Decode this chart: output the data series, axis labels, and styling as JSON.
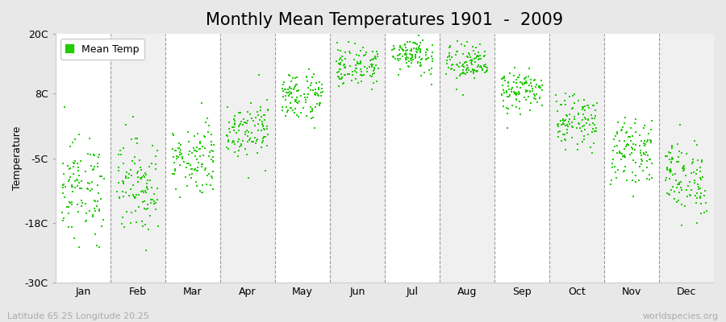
{
  "title": "Monthly Mean Temperatures 1901  -  2009",
  "ylabel": "Temperature",
  "yticks": [
    -30,
    -18,
    -5,
    8,
    20
  ],
  "ytick_labels": [
    "-30C",
    "-18C",
    "-5C",
    "8C",
    "20C"
  ],
  "ylim": [
    -30,
    20
  ],
  "months": [
    "Jan",
    "Feb",
    "Mar",
    "Apr",
    "May",
    "Jun",
    "Jul",
    "Aug",
    "Sep",
    "Oct",
    "Nov",
    "Dec"
  ],
  "month_means": [
    -11.0,
    -10.5,
    -5.0,
    1.0,
    7.5,
    13.5,
    16.0,
    14.0,
    8.5,
    2.5,
    -3.5,
    -9.0
  ],
  "month_stds": [
    5.0,
    4.8,
    3.5,
    2.8,
    2.5,
    2.0,
    1.8,
    2.0,
    2.0,
    2.5,
    3.0,
    3.8
  ],
  "n_years": 109,
  "dot_color": "#22cc00",
  "dot_size": 2.5,
  "bg_color_odd": "#f0f0f0",
  "bg_color_even": "#ffffff",
  "outer_bg": "#e8e8e8",
  "grid_color": "#999999",
  "legend_label": "Mean Temp",
  "bottom_left": "Latitude 65.25 Longitude 20.25",
  "bottom_right": "worldspecies.org",
  "title_fontsize": 15,
  "axis_fontsize": 9,
  "tick_fontsize": 9,
  "annotation_fontsize": 8
}
